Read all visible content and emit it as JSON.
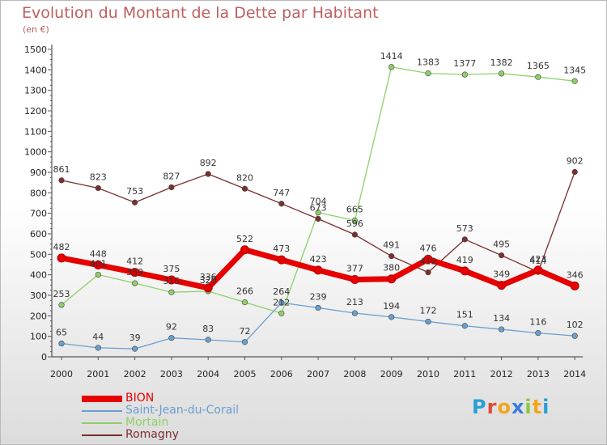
{
  "header": {
    "title": "Evolution du Montant de la Dette par Habitant",
    "unit": "(en €)"
  },
  "brand": {
    "letters": [
      {
        "ch": "P",
        "color": "#2a9fd6"
      },
      {
        "ch": "r",
        "color": "#e04a3a"
      },
      {
        "ch": "o",
        "color": "#f2a51a"
      },
      {
        "ch": "x",
        "color": "#3b7dd8"
      },
      {
        "ch": "i",
        "color": "#8cc63f"
      },
      {
        "ch": "t",
        "color": "#f2a51a"
      },
      {
        "ch": "i",
        "color": "#2a9fd6"
      }
    ]
  },
  "chart_data": {
    "type": "line",
    "x": [
      "2000",
      "2001",
      "2002",
      "2003",
      "2004",
      "2005",
      "2006",
      "2007",
      "2008",
      "2009",
      "2010",
      "2011",
      "2012",
      "2013",
      "2014"
    ],
    "ylim": [
      0,
      1500
    ],
    "yticks": [
      0,
      100,
      200,
      300,
      400,
      500,
      600,
      700,
      800,
      900,
      1000,
      1100,
      1200,
      1300,
      1400,
      1500
    ],
    "grid": false,
    "legend_position": "bottom-left",
    "series": [
      {
        "name": "BION",
        "color": "#e60000",
        "width": 7,
        "values": [
          482,
          448,
          412,
          375,
          336,
          522,
          473,
          423,
          377,
          380,
          476,
          419,
          349,
          423,
          346
        ]
      },
      {
        "name": "Saint-Jean-du-Corail",
        "color": "#6a9fd1",
        "width": 1.3,
        "values": [
          65,
          44,
          39,
          92,
          83,
          72,
          264,
          239,
          213,
          194,
          172,
          151,
          134,
          116,
          102
        ]
      },
      {
        "name": "Mortain",
        "color": "#8ed068",
        "width": 1.3,
        "values": [
          253,
          401,
          359,
          315,
          320,
          266,
          212,
          704,
          665,
          1414,
          1383,
          1377,
          1382,
          1365,
          1345
        ]
      },
      {
        "name": "Romagny",
        "color": "#7b2f2f",
        "width": 1.3,
        "values": [
          861,
          823,
          753,
          827,
          892,
          820,
          747,
          673,
          596,
          491,
          412,
          573,
          495,
          414,
          902
        ]
      }
    ],
    "labels": [
      {
        "x": "2000",
        "text": "482"
      },
      {
        "x": "2001",
        "text": "448"
      },
      {
        "x": "2002",
        "text": "412"
      },
      {
        "x": "2003",
        "text": "375"
      },
      {
        "x": "2004",
        "text": "336"
      },
      {
        "x": "2005",
        "text": "522"
      },
      {
        "x": "2006",
        "text": "473"
      },
      {
        "x": "2007",
        "text": "423"
      },
      {
        "x": "2008",
        "text": "377"
      },
      {
        "x": "2009",
        "text": "380"
      },
      {
        "x": "2010",
        "text": "476"
      },
      {
        "x": "2011",
        "text": "419"
      },
      {
        "x": "2012",
        "text": "349"
      },
      {
        "x": "2013",
        "text": "423"
      },
      {
        "x": "2014",
        "text": "346"
      },
      {
        "x": "2000",
        "text": "65"
      },
      {
        "x": "2001",
        "text": "44"
      },
      {
        "x": "2002",
        "text": "39"
      },
      {
        "x": "2003",
        "text": "92"
      },
      {
        "x": "2004",
        "text": "83"
      },
      {
        "x": "2005",
        "text": "72"
      },
      {
        "x": "2006",
        "text": "264"
      },
      {
        "x": "2007",
        "text": "239"
      },
      {
        "x": "2008",
        "text": "213"
      },
      {
        "x": "2009",
        "text": "194"
      },
      {
        "x": "2010",
        "text": "172"
      },
      {
        "x": "2011",
        "text": "151"
      },
      {
        "x": "2012",
        "text": "134"
      },
      {
        "x": "2013",
        "text": "116"
      },
      {
        "x": "2014",
        "text": "102"
      },
      {
        "x": "2000",
        "text": "253"
      },
      {
        "x": "2001",
        "text": "401"
      },
      {
        "x": "2002",
        "text": "359"
      },
      {
        "x": "2003",
        "text": "315"
      },
      {
        "x": "2004",
        "text": "320"
      },
      {
        "x": "2005",
        "text": "266"
      },
      {
        "x": "2006",
        "text": "212"
      },
      {
        "x": "2007",
        "text": "704"
      },
      {
        "x": "2008",
        "text": "665"
      },
      {
        "x": "2009",
        "text": "1414"
      },
      {
        "x": "2010",
        "text": "1383"
      },
      {
        "x": "2011",
        "text": "1377"
      },
      {
        "x": "2012",
        "text": "1382"
      },
      {
        "x": "2013",
        "text": "1365"
      },
      {
        "x": "2014",
        "text": "1345"
      },
      {
        "x": "2000",
        "text": "861"
      },
      {
        "x": "2001",
        "text": "823"
      },
      {
        "x": "2002",
        "text": "753"
      },
      {
        "x": "2003",
        "text": "827"
      },
      {
        "x": "2004",
        "text": "892"
      },
      {
        "x": "2005",
        "text": "820"
      },
      {
        "x": "2006",
        "text": "747"
      },
      {
        "x": "2007",
        "text": "673"
      },
      {
        "x": "2008",
        "text": "596"
      },
      {
        "x": "2009",
        "text": "491"
      },
      {
        "x": "2010",
        "text": "412"
      },
      {
        "x": "2011",
        "text": "573"
      },
      {
        "x": "2012",
        "text": "495"
      },
      {
        "x": "2013",
        "text": "414"
      },
      {
        "x": "2014",
        "text": "902"
      }
    ]
  }
}
